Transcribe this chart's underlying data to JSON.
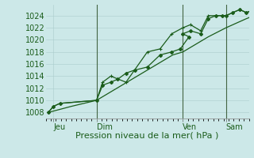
{
  "background_color": "#cce8e8",
  "plot_bg_color": "#cce8e8",
  "grid_color": "#aacccc",
  "line_color": "#1a5c1a",
  "marker_color": "#1a5c1a",
  "ylabel_ticks": [
    1008,
    1010,
    1012,
    1014,
    1016,
    1018,
    1020,
    1022,
    1024
  ],
  "xlabel": "Pression niveau de la mer( hPa )",
  "xlabel_fontsize": 8,
  "tick_fontsize": 7,
  "xtick_labels": [
    "Jeu",
    "Dim",
    "Ven",
    "Sam"
  ],
  "ylim": [
    1007.0,
    1025.8
  ],
  "xlim_days": [
    0,
    4.0
  ],
  "day_positions": [
    0.15,
    1.0,
    2.7,
    3.55
  ],
  "vlines_days": [
    1.0,
    2.7,
    3.55
  ],
  "series1_x": [
    0.05,
    0.15,
    0.28,
    1.0,
    1.12,
    1.28,
    1.42,
    1.58,
    1.75,
    2.0,
    2.25,
    2.48,
    2.65,
    2.82,
    2.7,
    2.85,
    3.05,
    3.2,
    3.35,
    3.48,
    3.55,
    3.68,
    3.82,
    3.95,
    4.1,
    4.25,
    4.4
  ],
  "series1_y": [
    1008,
    1009,
    1009.5,
    1010,
    1012.5,
    1013,
    1013.5,
    1014.5,
    1015,
    1015.5,
    1017.5,
    1018,
    1018.5,
    1020.5,
    1021,
    1021.5,
    1021,
    1023.5,
    1024,
    1024,
    1024,
    1024.5,
    1025,
    1024.5,
    1025,
    1025,
    1025
  ],
  "series2_x": [
    0.05,
    0.15,
    0.28,
    1.0,
    1.12,
    1.28,
    1.58,
    2.0,
    2.25,
    2.48,
    2.7,
    2.85,
    3.05,
    3.2,
    3.35,
    3.48,
    3.55,
    3.68,
    3.82,
    3.95,
    4.1,
    4.25,
    4.4
  ],
  "series2_y": [
    1008,
    1009,
    1009.5,
    1010,
    1013,
    1014,
    1013,
    1018,
    1018.5,
    1021,
    1022,
    1022.5,
    1021.5,
    1024,
    1024,
    1024,
    1024,
    1024.5,
    1025,
    1024.5,
    1025,
    1024.5,
    1025
  ],
  "series3_x": [
    0.05,
    0.5,
    1.0,
    1.5,
    2.0,
    2.5,
    2.7,
    3.2,
    3.55,
    3.95,
    4.4
  ],
  "series3_y": [
    1008,
    1009,
    1010,
    1012.5,
    1015,
    1017.5,
    1018,
    1020.5,
    1022,
    1023.5,
    1025
  ]
}
